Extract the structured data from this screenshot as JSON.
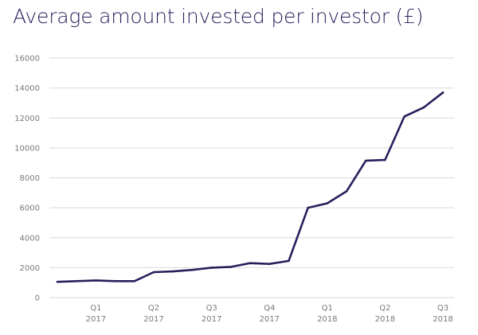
{
  "chart_data": {
    "type": "line",
    "title": "Average amount invested per investor (£)",
    "xlabel": "",
    "ylabel": "",
    "ylim": [
      0,
      16000
    ],
    "yticks": [
      0,
      2000,
      4000,
      6000,
      8000,
      10000,
      12000,
      14000,
      16000
    ],
    "grid": true,
    "legend": "none",
    "x_tick_labels": [
      {
        "quarter": "Q1",
        "year": "2017",
        "month_index": 2
      },
      {
        "quarter": "Q2",
        "year": "2017",
        "month_index": 5
      },
      {
        "quarter": "Q3",
        "year": "2017",
        "month_index": 8
      },
      {
        "quarter": "Q4",
        "year": "2017",
        "month_index": 11
      },
      {
        "quarter": "Q1",
        "year": "2018",
        "month_index": 14
      },
      {
        "quarter": "Q2",
        "year": "2018",
        "month_index": 17
      },
      {
        "quarter": "Q3",
        "year": "2018",
        "month_index": 20
      }
    ],
    "series": [
      {
        "values": [
          1050,
          1100,
          1150,
          1100,
          1100,
          1700,
          1750,
          1850,
          2000,
          2050,
          2300,
          2250,
          2450,
          6000,
          6300,
          7100,
          9150,
          9200,
          12100,
          12700,
          13700
        ]
      }
    ],
    "colors": {
      "line": "#2a1e5c",
      "title": "#2a1e5c",
      "grid": "#d9d9d9",
      "ticks": "#7a7a7a"
    }
  }
}
